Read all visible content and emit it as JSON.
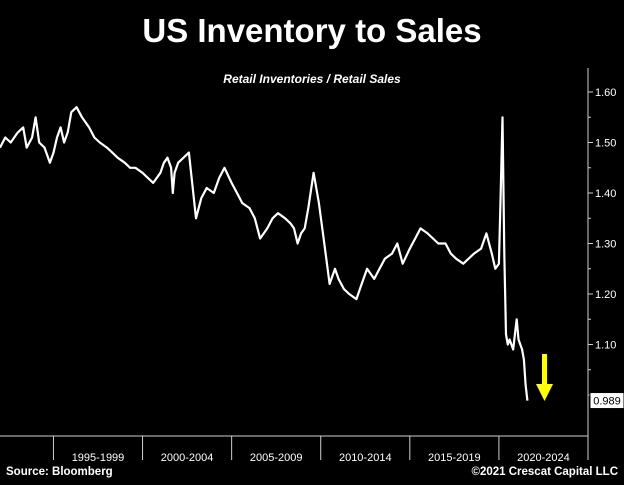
{
  "title": "US Inventory to Sales",
  "subtitle": "Retail Inventories / Retail Sales",
  "source": "Source: Bloomberg",
  "copyright": "©2021 Crescat Capital LLC",
  "colors": {
    "background": "#000000",
    "line": "#ffffff",
    "arrow": "#ffff00"
  },
  "arrow_icon": "down-arrow-icon",
  "chart_data": {
    "type": "line",
    "title": "US Inventory to Sales",
    "subtitle": "Retail Inventories / Retail Sales",
    "ylim": [
      0.94,
      1.62
    ],
    "xlim": [
      1992.0,
      2025.0
    ],
    "yticks": [
      1.1,
      1.2,
      1.3,
      1.4,
      1.5,
      1.6
    ],
    "ytick_labels": [
      "1.10",
      "1.20",
      "1.30",
      "1.40",
      "1.50",
      "1.60"
    ],
    "xcategories": [
      {
        "label": "1995-1999",
        "start": 1995,
        "end": 2000
      },
      {
        "label": "2000-2004",
        "start": 2000,
        "end": 2005
      },
      {
        "label": "2005-2009",
        "start": 2005,
        "end": 2010
      },
      {
        "label": "2010-2014",
        "start": 2010,
        "end": 2015
      },
      {
        "label": "2015-2019",
        "start": 2015,
        "end": 2020
      },
      {
        "label": "2020-2024",
        "start": 2020,
        "end": 2025
      }
    ],
    "grid": false,
    "last_value": 0.989,
    "last_value_label": "0.989",
    "series": [
      {
        "x": [
          1992.0,
          1992.3,
          1992.6,
          1993.0,
          1993.3,
          1993.5,
          1993.8,
          1994.0,
          1994.2,
          1994.5,
          1994.8,
          1995.0,
          1995.2,
          1995.4,
          1995.6,
          1995.8,
          1996.0,
          1996.3,
          1996.6,
          1997.0,
          1997.3,
          1997.6,
          1998.0,
          1998.3,
          1998.6,
          1999.0,
          1999.3,
          1999.6,
          2000.0,
          2000.3,
          2000.6,
          2001.0,
          2001.2,
          2001.4,
          2001.6,
          2001.7,
          2001.8,
          2002.0,
          2002.3,
          2002.6,
          2003.0,
          2003.3,
          2003.6,
          2004.0,
          2004.3,
          2004.6,
          2005.0,
          2005.3,
          2005.6,
          2006.0,
          2006.3,
          2006.6,
          2007.0,
          2007.3,
          2007.6,
          2008.0,
          2008.3,
          2008.5,
          2008.7,
          2008.9,
          2009.1,
          2009.3,
          2009.6,
          2009.9,
          2010.2,
          2010.5,
          2010.8,
          2011.0,
          2011.3,
          2011.6,
          2012.0,
          2012.3,
          2012.6,
          2013.0,
          2013.3,
          2013.6,
          2014.0,
          2014.3,
          2014.6,
          2015.0,
          2015.3,
          2015.6,
          2016.0,
          2016.3,
          2016.6,
          2017.0,
          2017.3,
          2017.6,
          2018.0,
          2018.3,
          2018.6,
          2019.0,
          2019.3,
          2019.6,
          2019.8,
          2020.0,
          2020.1,
          2020.2,
          2020.3,
          2020.4,
          2020.5,
          2020.6,
          2020.7,
          2020.8,
          2020.9,
          2021.0,
          2021.1,
          2021.2,
          2021.3,
          2021.4,
          2021.5,
          2021.6
        ],
        "y": [
          1.49,
          1.51,
          1.5,
          1.52,
          1.53,
          1.49,
          1.51,
          1.55,
          1.5,
          1.49,
          1.46,
          1.48,
          1.51,
          1.53,
          1.5,
          1.52,
          1.56,
          1.57,
          1.55,
          1.53,
          1.51,
          1.5,
          1.49,
          1.48,
          1.47,
          1.46,
          1.45,
          1.45,
          1.44,
          1.43,
          1.42,
          1.44,
          1.46,
          1.47,
          1.45,
          1.4,
          1.44,
          1.46,
          1.47,
          1.48,
          1.35,
          1.39,
          1.41,
          1.4,
          1.43,
          1.45,
          1.42,
          1.4,
          1.38,
          1.37,
          1.35,
          1.31,
          1.33,
          1.35,
          1.36,
          1.35,
          1.34,
          1.33,
          1.3,
          1.32,
          1.33,
          1.37,
          1.44,
          1.38,
          1.3,
          1.22,
          1.25,
          1.23,
          1.21,
          1.2,
          1.19,
          1.22,
          1.25,
          1.23,
          1.25,
          1.27,
          1.28,
          1.3,
          1.26,
          1.29,
          1.31,
          1.33,
          1.32,
          1.31,
          1.3,
          1.3,
          1.28,
          1.27,
          1.26,
          1.27,
          1.28,
          1.29,
          1.32,
          1.28,
          1.25,
          1.26,
          1.4,
          1.55,
          1.28,
          1.12,
          1.1,
          1.11,
          1.1,
          1.09,
          1.12,
          1.15,
          1.11,
          1.1,
          1.09,
          1.07,
          1.02,
          0.989
        ]
      }
    ]
  }
}
